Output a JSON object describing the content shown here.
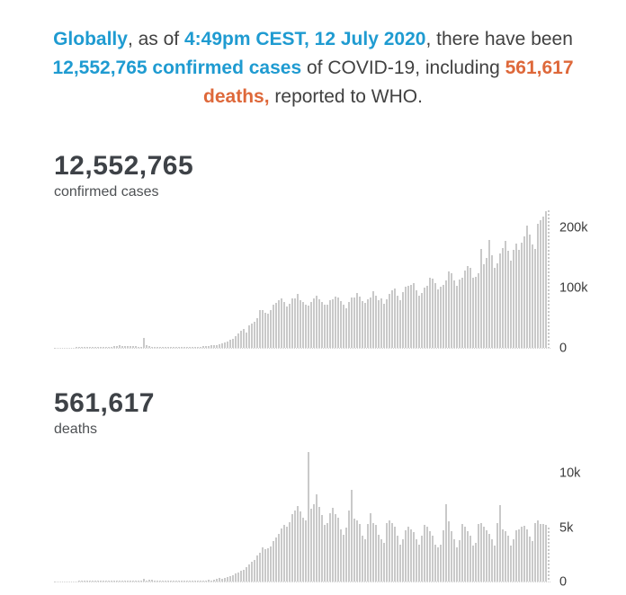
{
  "colors": {
    "accent_blue": "#1f9bd1",
    "accent_orange": "#de683a",
    "text_dark": "#414141",
    "stat_color": "#3e4247",
    "label_color": "#4e5154",
    "tick_color": "#3b3b3b",
    "bar_color": "#c9c9c9"
  },
  "headline": {
    "seg_globally": "Globally",
    "seg_asof": ", as of ",
    "seg_datetime": "4:49pm CEST, 12 July 2020",
    "seg_there": ", there have been ",
    "seg_cases": "12,552,765 confirmed cases",
    "seg_of": " of COVID-19, including ",
    "seg_deaths": "561,617 deaths,",
    "seg_reported": " reported to WHO."
  },
  "chart_data": [
    {
      "id": "cases",
      "type": "bar",
      "title": "12,552,765 confirmed cases",
      "stat_value": "12,552,765",
      "stat_label": "confirmed cases",
      "xlabel": "",
      "ylabel": "",
      "x_description": "daily new confirmed cases, one bar per day through 12 July 2020 (no x tick labels shown)",
      "grid": false,
      "legend": "none",
      "yaxis_side": "right",
      "ylim": [
        0,
        234600
      ],
      "scale_max": 234600,
      "yticks": [
        {
          "label": "200k",
          "value": 200000
        },
        {
          "label": "100k",
          "value": 100000
        },
        {
          "label": "0",
          "value": 0
        }
      ],
      "last_bar_partial": true,
      "bar_color": "#c9c9c9",
      "values": [
        0,
        0,
        0,
        0,
        0,
        0,
        0,
        0,
        60,
        80,
        150,
        260,
        440,
        270,
        470,
        700,
        780,
        1750,
        1470,
        1750,
        2000,
        2100,
        2600,
        3100,
        3900,
        3700,
        3200,
        3400,
        2700,
        3000,
        2600,
        2050,
        2050,
        17000,
        4050,
        2650,
        2200,
        2100,
        1900,
        550,
        650,
        900,
        1000,
        650,
        600,
        450,
        900,
        1350,
        1350,
        1750,
        1750,
        1800,
        2200,
        2000,
        2250,
        2900,
        3700,
        3600,
        4000,
        4250,
        4600,
        6700,
        7500,
        9750,
        10950,
        13900,
        15100,
        19800,
        24200,
        28700,
        32000,
        26000,
        37000,
        40000,
        43000,
        49600,
        63200,
        62500,
        58400,
        57600,
        63800,
        72800,
        75600,
        79300,
        82900,
        77200,
        68800,
        74000,
        82000,
        83000,
        89600,
        80000,
        76500,
        71800,
        70000,
        76600,
        83000,
        87000,
        81700,
        76900,
        72800,
        72200,
        79400,
        81200,
        85700,
        84900,
        77800,
        71800,
        66300,
        76700,
        84800,
        84600,
        91900,
        86100,
        78800,
        74700,
        80600,
        83500,
        94300,
        87700,
        79300,
        82600,
        74100,
        81600,
        89500,
        95800,
        99800,
        87300,
        79000,
        92500,
        103000,
        104500,
        106000,
        108000,
        96400,
        87100,
        92200,
        100200,
        104300,
        117500,
        116100,
        107700,
        98100,
        102600,
        105600,
        113500,
        128400,
        124800,
        112200,
        103300,
        114200,
        117500,
        128700,
        136500,
        133300,
        117800,
        118500,
        124200,
        166000,
        140000,
        150100,
        181200,
        154600,
        133300,
        141000,
        158300,
        167000,
        179300,
        161800,
        145300,
        163900,
        174500,
        163900,
        175700,
        185800,
        203800,
        189100,
        172500,
        165300,
        207900,
        213200,
        219000,
        228100,
        230400
      ]
    },
    {
      "id": "deaths",
      "type": "bar",
      "title": "561,617 deaths",
      "stat_value": "561,617",
      "stat_label": "deaths",
      "xlabel": "",
      "ylabel": "",
      "x_description": "daily new deaths, one bar per day through 12 July 2020 (no x tick labels shown)",
      "grid": false,
      "legend": "none",
      "yaxis_side": "right",
      "ylim": [
        0,
        12670
      ],
      "scale_max": 12670,
      "yticks": [
        {
          "label": "10k",
          "value": 10000
        },
        {
          "label": "5k",
          "value": 5000
        },
        {
          "label": "0",
          "value": 0
        }
      ],
      "last_bar_partial": true,
      "bar_color": "#c9c9c9",
      "values": [
        0,
        0,
        0,
        0,
        0,
        0,
        0,
        0,
        0,
        2,
        3,
        4,
        8,
        16,
        15,
        26,
        26,
        38,
        43,
        46,
        45,
        46,
        45,
        57,
        64,
        66,
        73,
        73,
        86,
        89,
        97,
        108,
        97,
        254,
        13,
        144,
        142,
        105,
        106,
        109,
        118,
        75,
        52,
        35,
        44,
        50,
        27,
        44,
        38,
        47,
        58,
        67,
        83,
        80,
        98,
        105,
        99,
        129,
        116,
        203,
        258,
        321,
        267,
        342,
        441,
        509,
        594,
        779,
        825,
        971,
        1093,
        1343,
        1580,
        1847,
        2000,
        2398,
        2684,
        3180,
        2987,
        3068,
        3282,
        3743,
        4058,
        4421,
        4900,
        5265,
        5053,
        5528,
        6250,
        6550,
        7040,
        6490,
        5950,
        5700,
        12000,
        6750,
        7150,
        8050,
        6950,
        6150,
        5250,
        5450,
        6350,
        6850,
        6250,
        5950,
        4850,
        4350,
        5000,
        6550,
        8500,
        5850,
        5650,
        5350,
        4250,
        3950,
        5350,
        6350,
        5450,
        5250,
        4350,
        3950,
        3550,
        5450,
        5650,
        5450,
        5050,
        4250,
        3450,
        3950,
        4750,
        5050,
        4850,
        4550,
        3950,
        3450,
        4250,
        5250,
        5050,
        4650,
        4250,
        3450,
        3150,
        3450,
        4750,
        7200,
        5550,
        4650,
        3950,
        3150,
        3850,
        5350,
        5050,
        4650,
        4250,
        3350,
        3550,
        5350,
        5450,
        5050,
        4750,
        4450,
        3950,
        3350,
        5450,
        7100,
        4850,
        4650,
        4250,
        3350,
        3950,
        4750,
        4850,
        5050,
        5150,
        4850,
        4150,
        3750,
        5450,
        5650,
        5350,
        5300,
        5250,
        5000
      ]
    }
  ]
}
